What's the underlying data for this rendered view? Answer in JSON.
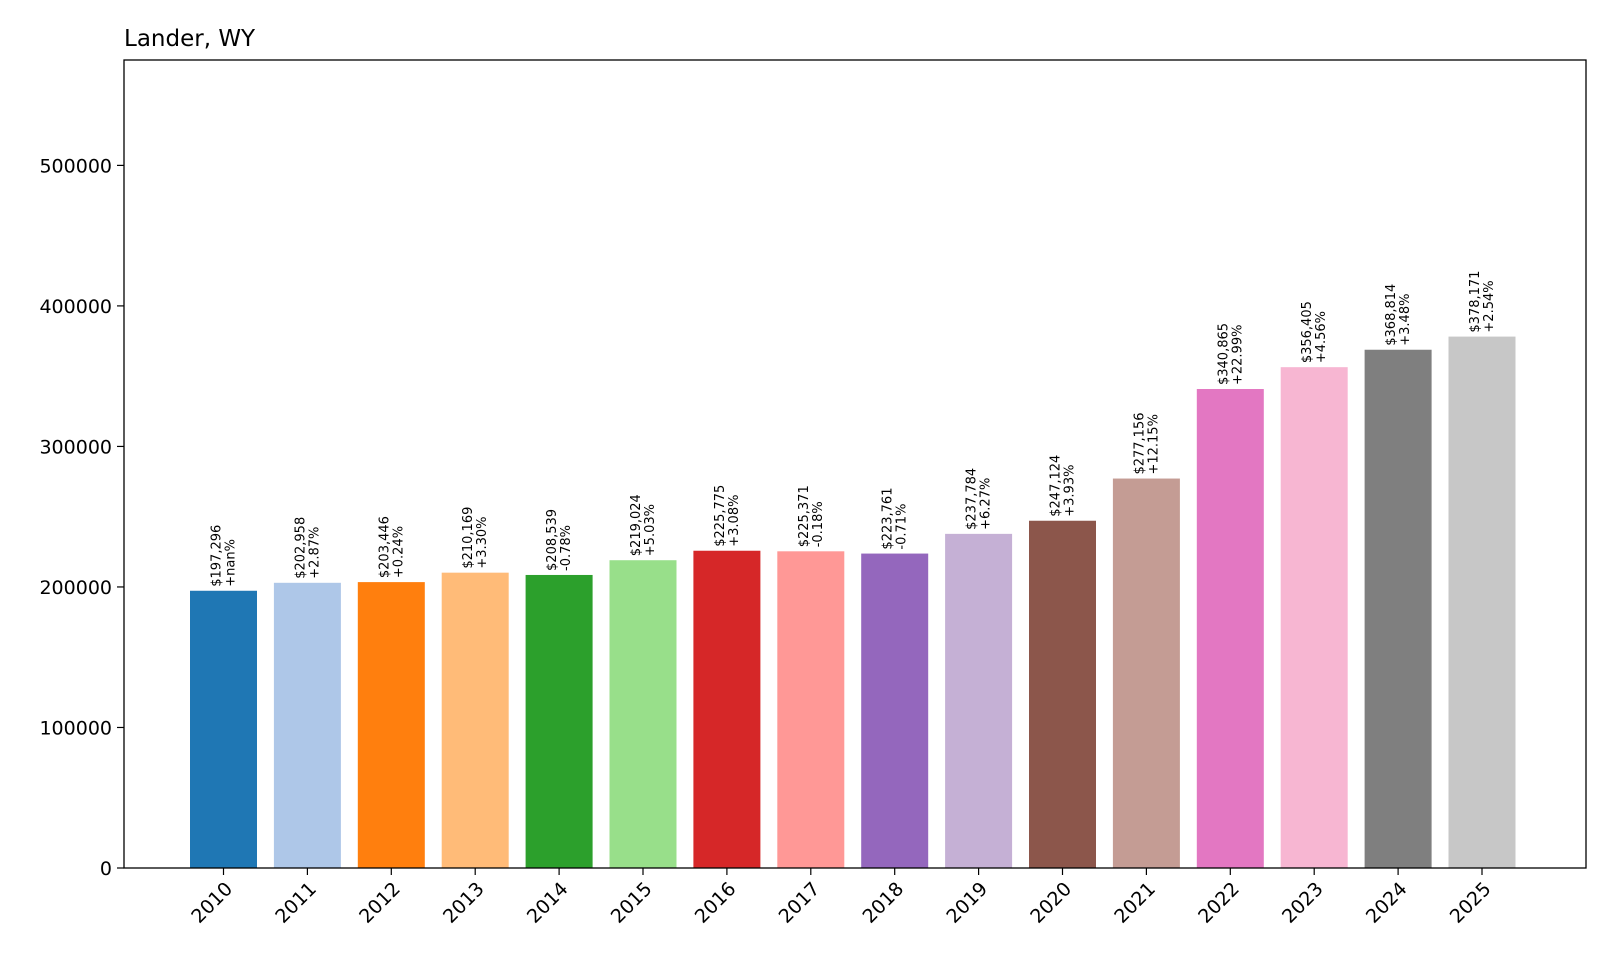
{
  "chart_data": {
    "type": "bar",
    "title": "Lander, WY",
    "xlabel": "",
    "ylabel": "",
    "ylim": [
      0,
      575000
    ],
    "yticks": [
      0,
      100000,
      200000,
      300000,
      400000,
      500000
    ],
    "ytick_labels": [
      "0",
      "100000",
      "200000",
      "300000",
      "400000",
      "500000"
    ],
    "categories": [
      "2010",
      "2011",
      "2012",
      "2013",
      "2014",
      "2015",
      "2016",
      "2017",
      "2018",
      "2019",
      "2020",
      "2021",
      "2022",
      "2023",
      "2024",
      "2025"
    ],
    "values": [
      197296,
      202958,
      203446,
      210169,
      208539,
      219024,
      225775,
      225371,
      223761,
      237784,
      247124,
      277156,
      340865,
      356405,
      368814,
      378171
    ],
    "value_labels": [
      "$197,296",
      "$202,958",
      "$203,446",
      "$210,169",
      "$208,539",
      "$219,024",
      "$225,775",
      "$225,371",
      "$223,761",
      "$237,784",
      "$247,124",
      "$277,156",
      "$340,865",
      "$356,405",
      "$368,814",
      "$378,171"
    ],
    "change_labels": [
      "+nan%",
      "+2.87%",
      "+0.24%",
      "+3.30%",
      "-0.78%",
      "+5.03%",
      "+3.08%",
      "-0.18%",
      "-0.71%",
      "+6.27%",
      "+3.93%",
      "+12.15%",
      "+22.99%",
      "+4.56%",
      "+3.48%",
      "+2.54%"
    ],
    "colors": [
      "#1f77b4",
      "#aec7e8",
      "#ff7f0e",
      "#ffbb78",
      "#2ca02c",
      "#98df8a",
      "#d62728",
      "#ff9896",
      "#9467bd",
      "#c5b0d5",
      "#8c564b",
      "#c49c94",
      "#e377c2",
      "#f7b6d2",
      "#7f7f7f",
      "#c7c7c7"
    ],
    "grid": false,
    "legend": "none"
  }
}
